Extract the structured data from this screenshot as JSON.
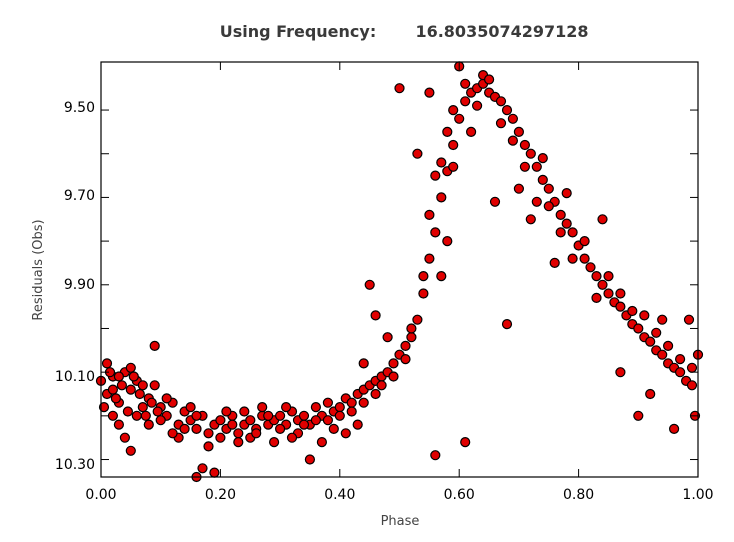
{
  "chart_data": {
    "type": "scatter",
    "title_prefix": "Using Frequency:",
    "title_value": "16.8035074297128",
    "xlabel": "Phase",
    "ylabel": "Residuals (Obs)",
    "xlim": [
      0.0,
      1.0
    ],
    "ylim": [
      10.34,
      9.39
    ],
    "y_inverted": true,
    "x_ticks": [
      "0.00",
      "0.20",
      "0.40",
      "0.60",
      "0.80",
      "1.00"
    ],
    "y_ticks": [
      "9.50",
      "9.70",
      "9.90",
      "10.10",
      "10.30"
    ],
    "grid": false,
    "marker_fill": "#e00000",
    "marker_edge": "#000000",
    "series": [
      {
        "points": [
          [
            0.0,
            10.12
          ],
          [
            0.01,
            10.15
          ],
          [
            0.02,
            10.11
          ],
          [
            0.03,
            10.17
          ],
          [
            0.01,
            10.08
          ],
          [
            0.02,
            10.2
          ],
          [
            0.04,
            10.1
          ],
          [
            0.05,
            10.14
          ],
          [
            0.03,
            10.22
          ],
          [
            0.06,
            10.12
          ],
          [
            0.07,
            10.18
          ],
          [
            0.05,
            10.09
          ],
          [
            0.08,
            10.16
          ],
          [
            0.09,
            10.13
          ],
          [
            0.04,
            10.25
          ],
          [
            0.05,
            10.28
          ],
          [
            0.09,
            10.04
          ],
          [
            0.1,
            10.18
          ],
          [
            0.11,
            10.2
          ],
          [
            0.12,
            10.17
          ],
          [
            0.13,
            10.22
          ],
          [
            0.14,
            10.19
          ],
          [
            0.15,
            10.21
          ],
          [
            0.16,
            10.23
          ],
          [
            0.17,
            10.2
          ],
          [
            0.18,
            10.24
          ],
          [
            0.19,
            10.22
          ],
          [
            0.2,
            10.21
          ],
          [
            0.21,
            10.23
          ],
          [
            0.22,
            10.2
          ],
          [
            0.23,
            10.24
          ],
          [
            0.24,
            10.22
          ],
          [
            0.25,
            10.21
          ],
          [
            0.26,
            10.23
          ],
          [
            0.27,
            10.2
          ],
          [
            0.28,
            10.22
          ],
          [
            0.29,
            10.21
          ],
          [
            0.3,
            10.2
          ],
          [
            0.31,
            10.22
          ],
          [
            0.32,
            10.19
          ],
          [
            0.33,
            10.21
          ],
          [
            0.34,
            10.2
          ],
          [
            0.35,
            10.22
          ],
          [
            0.36,
            10.18
          ],
          [
            0.37,
            10.2
          ],
          [
            0.38,
            10.17
          ],
          [
            0.39,
            10.19
          ],
          [
            0.4,
            10.18
          ],
          [
            0.41,
            10.16
          ],
          [
            0.42,
            10.17
          ],
          [
            0.43,
            10.15
          ],
          [
            0.44,
            10.14
          ],
          [
            0.45,
            10.13
          ],
          [
            0.46,
            10.12
          ],
          [
            0.47,
            10.11
          ],
          [
            0.48,
            10.1
          ],
          [
            0.49,
            10.08
          ],
          [
            0.5,
            10.06
          ],
          [
            0.51,
            10.04
          ],
          [
            0.52,
            10.02
          ],
          [
            0.53,
            9.98
          ],
          [
            0.54,
            9.92
          ],
          [
            0.55,
            9.84
          ],
          [
            0.56,
            9.78
          ],
          [
            0.57,
            9.7
          ],
          [
            0.58,
            9.64
          ],
          [
            0.59,
            9.58
          ],
          [
            0.6,
            9.52
          ],
          [
            0.61,
            9.48
          ],
          [
            0.62,
            9.46
          ],
          [
            0.63,
            9.45
          ],
          [
            0.64,
            9.44
          ],
          [
            0.65,
            9.46
          ],
          [
            0.66,
            9.47
          ],
          [
            0.67,
            9.48
          ],
          [
            0.68,
            9.5
          ],
          [
            0.69,
            9.52
          ],
          [
            0.7,
            9.55
          ],
          [
            0.71,
            9.58
          ],
          [
            0.72,
            9.6
          ],
          [
            0.73,
            9.63
          ],
          [
            0.74,
            9.66
          ],
          [
            0.75,
            9.68
          ],
          [
            0.76,
            9.71
          ],
          [
            0.77,
            9.74
          ],
          [
            0.78,
            9.76
          ],
          [
            0.79,
            9.78
          ],
          [
            0.8,
            9.81
          ],
          [
            0.81,
            9.84
          ],
          [
            0.82,
            9.86
          ],
          [
            0.83,
            9.88
          ],
          [
            0.84,
            9.9
          ],
          [
            0.85,
            9.92
          ],
          [
            0.86,
            9.94
          ],
          [
            0.87,
            9.95
          ],
          [
            0.88,
            9.97
          ],
          [
            0.89,
            9.99
          ],
          [
            0.9,
            10.0
          ],
          [
            0.91,
            10.02
          ],
          [
            0.92,
            10.03
          ],
          [
            0.93,
            10.05
          ],
          [
            0.94,
            10.06
          ],
          [
            0.95,
            10.08
          ],
          [
            0.96,
            10.09
          ],
          [
            0.97,
            10.1
          ],
          [
            0.98,
            10.12
          ],
          [
            0.99,
            10.13
          ],
          [
            1.0,
            10.06
          ],
          [
            0.995,
            10.2
          ],
          [
            0.985,
            9.98
          ],
          [
            0.5,
            9.45
          ],
          [
            0.56,
            10.29
          ],
          [
            0.61,
            10.26
          ],
          [
            0.68,
            9.99
          ],
          [
            0.66,
            9.71
          ],
          [
            0.76,
            9.85
          ],
          [
            0.45,
            9.9
          ],
          [
            0.17,
            10.32
          ],
          [
            0.16,
            10.34
          ],
          [
            0.19,
            10.33
          ],
          [
            0.35,
            10.3
          ],
          [
            0.44,
            10.08
          ],
          [
            0.53,
            9.6
          ],
          [
            0.55,
            9.46
          ],
          [
            0.59,
            9.63
          ],
          [
            0.62,
            9.55
          ],
          [
            0.64,
            9.42
          ],
          [
            0.6,
            9.4
          ],
          [
            0.57,
            9.88
          ],
          [
            0.58,
            9.8
          ],
          [
            0.78,
            9.69
          ],
          [
            0.84,
            9.75
          ],
          [
            0.87,
            10.1
          ],
          [
            0.9,
            10.2
          ],
          [
            0.92,
            10.15
          ],
          [
            0.96,
            10.23
          ],
          [
            0.94,
            9.98
          ],
          [
            0.72,
            9.75
          ],
          [
            0.74,
            9.61
          ],
          [
            0.7,
            9.68
          ],
          [
            0.48,
            10.02
          ],
          [
            0.46,
            9.97
          ],
          [
            0.43,
            10.22
          ],
          [
            0.41,
            10.24
          ],
          [
            0.39,
            10.23
          ],
          [
            0.37,
            10.26
          ],
          [
            0.33,
            10.24
          ],
          [
            0.31,
            10.18
          ],
          [
            0.29,
            10.26
          ],
          [
            0.27,
            10.18
          ],
          [
            0.25,
            10.25
          ],
          [
            0.23,
            10.26
          ],
          [
            0.21,
            10.19
          ],
          [
            0.18,
            10.27
          ],
          [
            0.15,
            10.18
          ],
          [
            0.13,
            10.25
          ],
          [
            0.11,
            10.16
          ],
          [
            0.08,
            10.22
          ],
          [
            0.06,
            10.2
          ],
          [
            0.02,
            10.14
          ],
          [
            0.03,
            10.11
          ],
          [
            0.07,
            10.13
          ],
          [
            0.1,
            10.21
          ],
          [
            0.12,
            10.24
          ],
          [
            0.14,
            10.23
          ],
          [
            0.16,
            10.2
          ],
          [
            0.2,
            10.25
          ],
          [
            0.22,
            10.22
          ],
          [
            0.24,
            10.19
          ],
          [
            0.26,
            10.24
          ],
          [
            0.28,
            10.2
          ],
          [
            0.3,
            10.23
          ],
          [
            0.32,
            10.25
          ],
          [
            0.34,
            10.22
          ],
          [
            0.36,
            10.21
          ],
          [
            0.38,
            10.21
          ],
          [
            0.4,
            10.2
          ],
          [
            0.42,
            10.19
          ],
          [
            0.44,
            10.17
          ],
          [
            0.46,
            10.15
          ],
          [
            0.47,
            10.13
          ],
          [
            0.49,
            10.11
          ],
          [
            0.51,
            10.07
          ],
          [
            0.52,
            10.0
          ],
          [
            0.54,
            9.88
          ],
          [
            0.55,
            9.74
          ],
          [
            0.56,
            9.65
          ],
          [
            0.57,
            9.62
          ],
          [
            0.58,
            9.55
          ],
          [
            0.59,
            9.5
          ],
          [
            0.61,
            9.44
          ],
          [
            0.63,
            9.49
          ],
          [
            0.65,
            9.43
          ],
          [
            0.67,
            9.53
          ],
          [
            0.69,
            9.57
          ],
          [
            0.71,
            9.63
          ],
          [
            0.73,
            9.71
          ],
          [
            0.75,
            9.72
          ],
          [
            0.77,
            9.78
          ],
          [
            0.79,
            9.84
          ],
          [
            0.81,
            9.8
          ],
          [
            0.83,
            9.93
          ],
          [
            0.85,
            9.88
          ],
          [
            0.87,
            9.92
          ],
          [
            0.89,
            9.96
          ],
          [
            0.91,
            9.97
          ],
          [
            0.93,
            10.01
          ],
          [
            0.95,
            10.04
          ],
          [
            0.97,
            10.07
          ],
          [
            0.99,
            10.09
          ],
          [
            0.005,
            10.18
          ],
          [
            0.015,
            10.1
          ],
          [
            0.025,
            10.16
          ],
          [
            0.035,
            10.13
          ],
          [
            0.045,
            10.19
          ],
          [
            0.055,
            10.11
          ],
          [
            0.065,
            10.15
          ],
          [
            0.075,
            10.2
          ],
          [
            0.085,
            10.17
          ],
          [
            0.095,
            10.19
          ]
        ]
      }
    ]
  }
}
